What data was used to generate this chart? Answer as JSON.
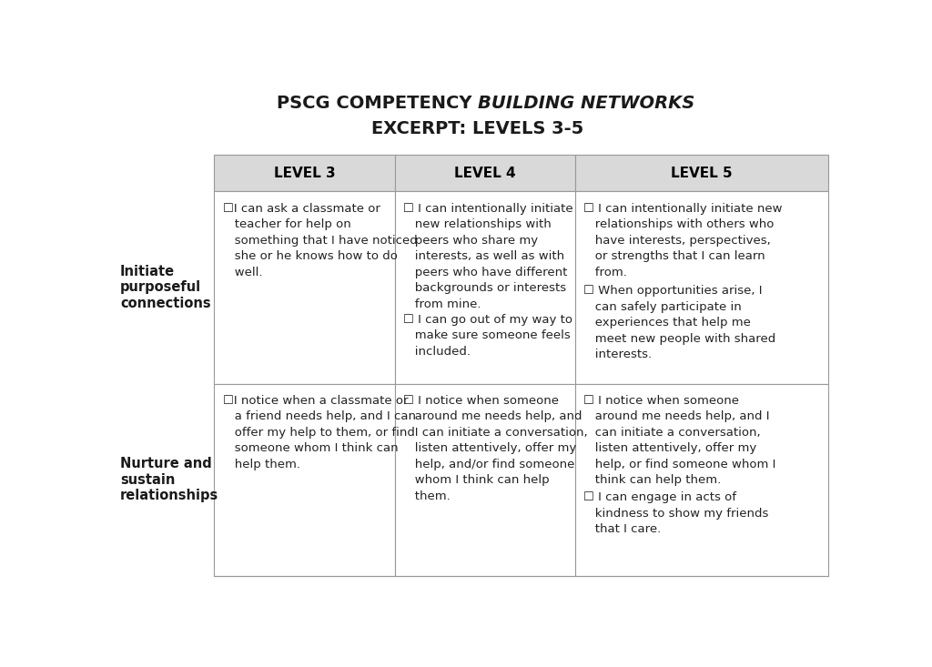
{
  "title_line1": "PSCG COMPETENCY ",
  "title_italic": "BUILDING NETWORKS",
  "title_line2": "EXCERPT: LEVELS 3-5",
  "background_color": "#ffffff",
  "header_bg": "#d9d9d9",
  "header_text_color": "#000000",
  "cell_bg": "#ffffff",
  "border_color": "#999999",
  "text_color": "#222222",
  "row_labels": [
    "Initiate\npurposeful\nconnections",
    "Nurture and\nsustain\nrelationships"
  ],
  "col_headers": [
    "LEVEL 3",
    "LEVEL 4",
    "LEVEL 5"
  ],
  "cells": [
    [
      "☐I can ask a classmate or\n   teacher for help on\n   something that I have noticed\n   she or he knows how to do\n   well.",
      "☐ I can intentionally initiate\n   new relationships with\n   peers who share my\n   interests, as well as with\n   peers who have different\n   backgrounds or interests\n   from mine.\n\n☐ I can go out of my way to\n   make sure someone feels\n   included.",
      "☐ I can intentionally initiate new\n   relationships with others who\n   have interests, perspectives,\n   or strengths that I can learn\n   from.\n\n☐ When opportunities arise, I\n   can safely participate in\n   experiences that help me\n   meet new people with shared\n   interests."
    ],
    [
      "☐I notice when a classmate or\n   a friend needs help, and I can\n   offer my help to them, or find\n   someone whom I think can\n   help them.",
      "☐ I notice when someone\n   around me needs help, and\n   I can initiate a conversation,\n   listen attentively, offer my\n   help, and/or find someone\n   whom I think can help\n   them.",
      "☐ I notice when someone\n   around me needs help, and I\n   can initiate a conversation,\n   listen attentively, offer my\n   help, or find someone whom I\n   think can help them.\n\n☐ I can engage in acts of\n   kindness to show my friends\n   that I care."
    ]
  ],
  "font_size_header": 11,
  "font_size_cell": 9.5,
  "font_size_row_label": 10.5,
  "font_size_title": 14
}
